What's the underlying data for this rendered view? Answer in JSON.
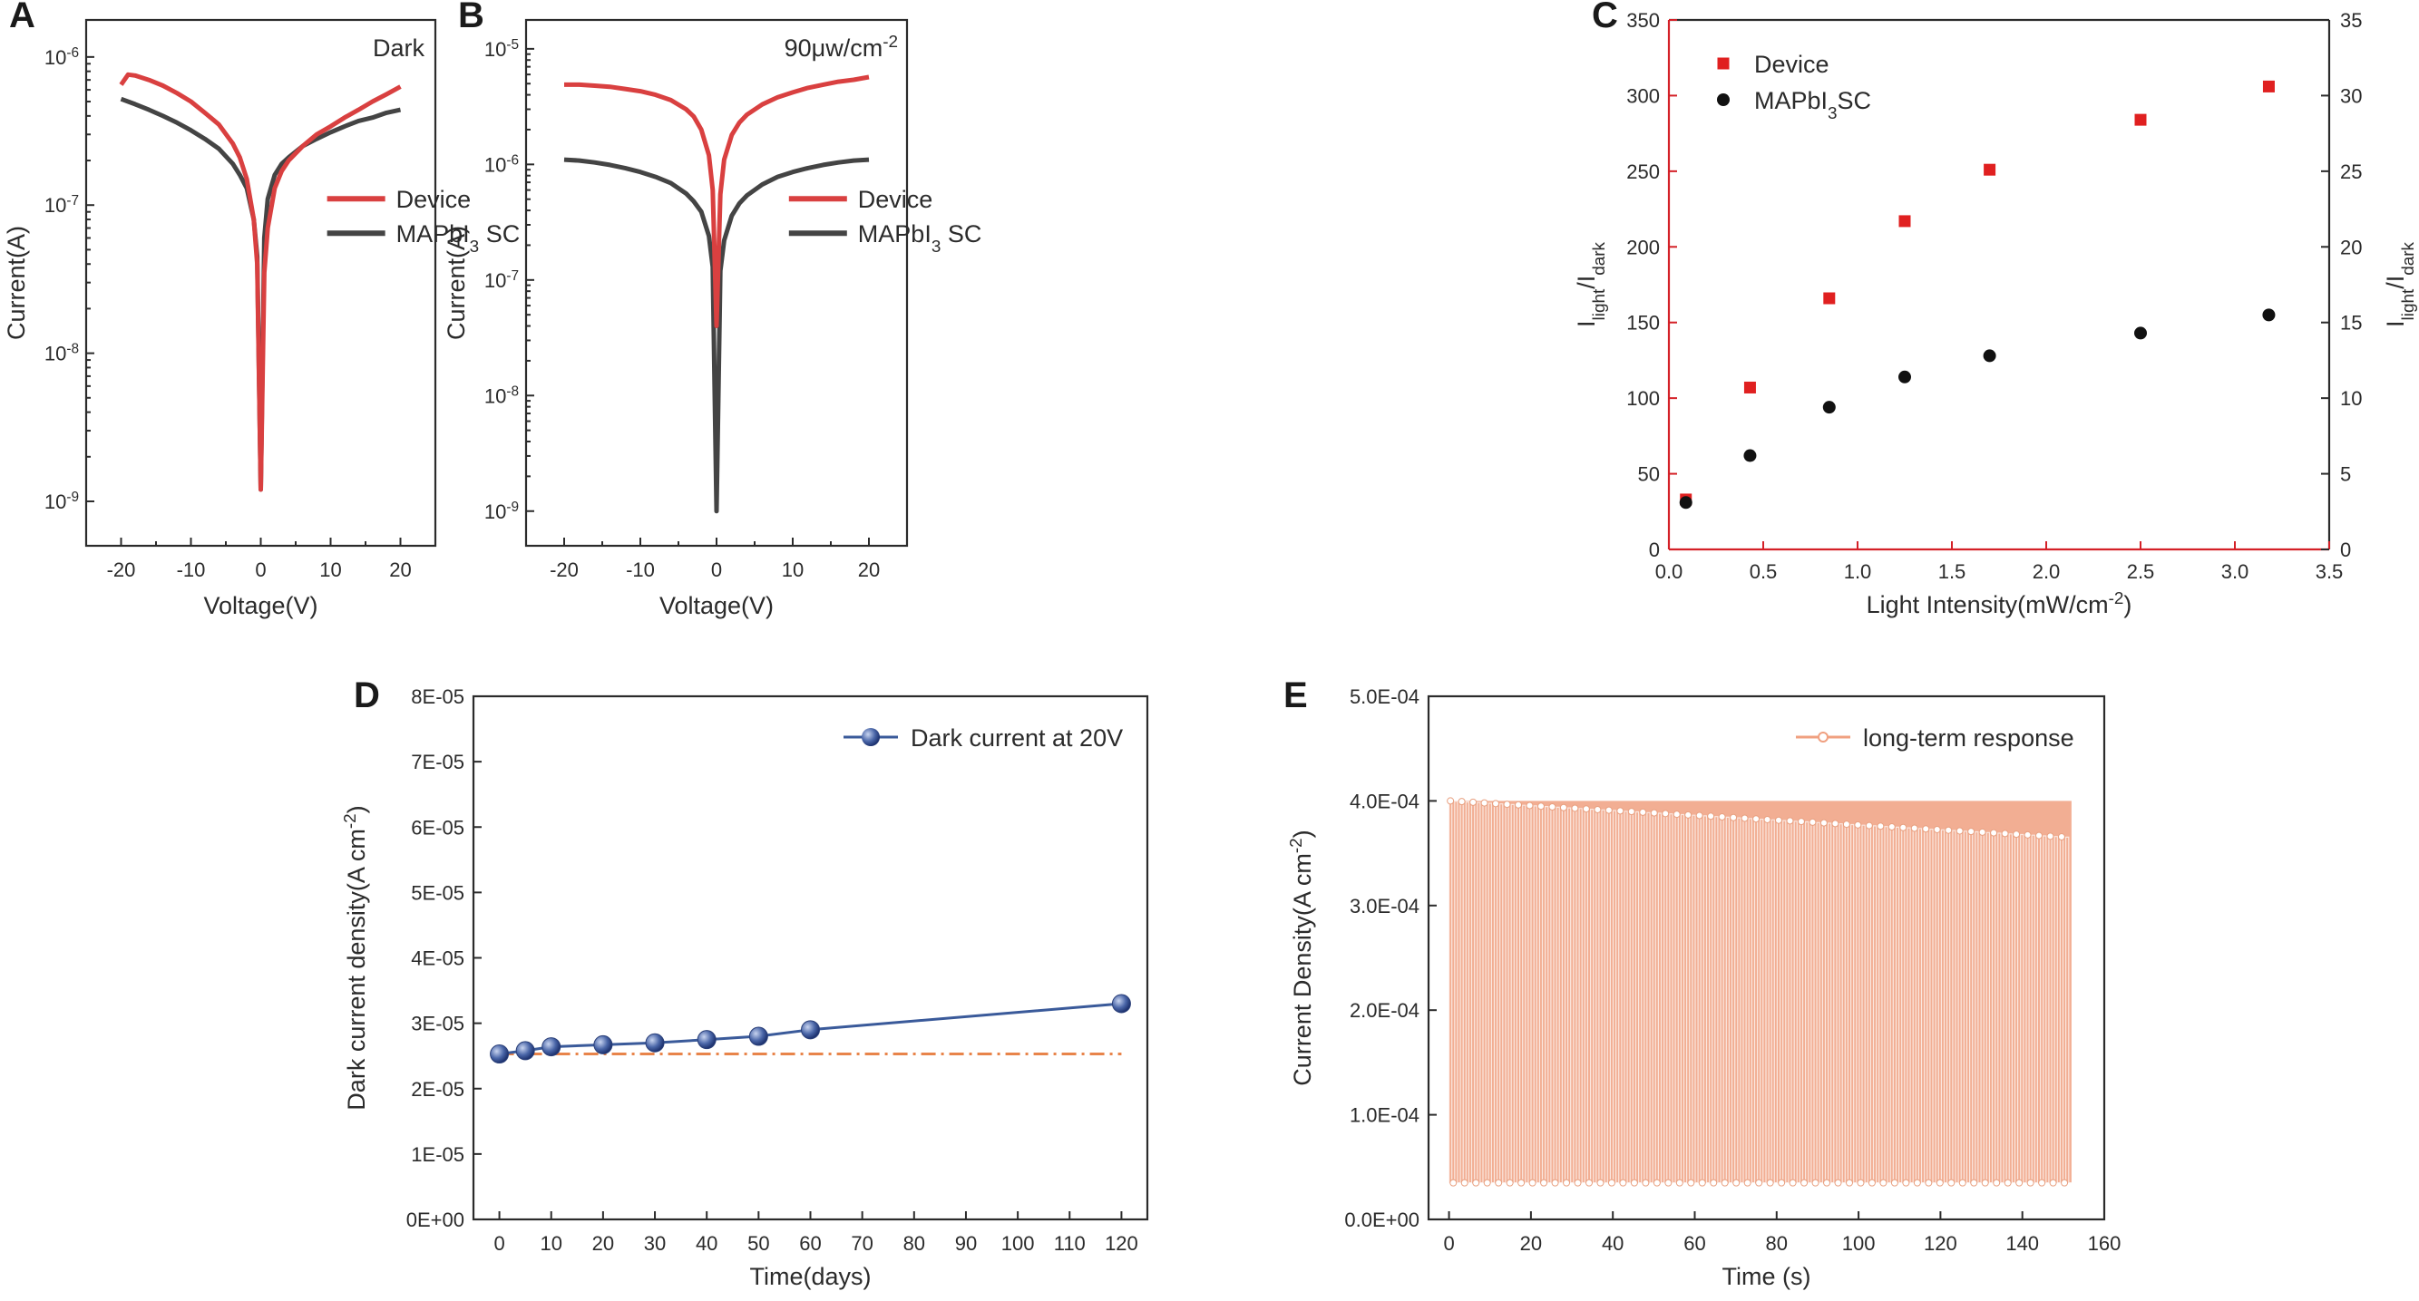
{
  "chart_data": [
    {
      "id": "A",
      "type": "line",
      "panel_label": "A",
      "annotation": "Dark",
      "xlabel": "Voltage(V)",
      "ylabel": "Current(A)",
      "yscale": "log",
      "xlim": [
        -25,
        25
      ],
      "ylim_exp": [
        -9.3,
        -5.75
      ],
      "xticks": [
        -20,
        -10,
        0,
        10,
        20
      ],
      "xtick_labels": [
        "-20",
        "-10",
        "0",
        "10",
        "20"
      ],
      "yticks_exp": [
        -9,
        -8,
        -7,
        -6
      ],
      "ytick_labels": [
        "10",
        "10",
        "10",
        "10"
      ],
      "ytick_sups": [
        "-9",
        "-8",
        "-7",
        "-6"
      ],
      "legend_position": "center-right",
      "series": [
        {
          "name": "Device",
          "legend_main": "Device",
          "legend_sub": "",
          "legend_tail": "",
          "color": "#d94040",
          "x": [
            -20,
            -19,
            -18,
            -16,
            -14,
            -12,
            -10,
            -8,
            -6,
            -4,
            -3,
            -2,
            -1,
            -0.5,
            0,
            0.5,
            1,
            2,
            3,
            4,
            6,
            8,
            10,
            12,
            14,
            16,
            18,
            20
          ],
          "y": [
            6.5e-07,
            7.6e-07,
            7.5e-07,
            7e-07,
            6.4e-07,
            5.7e-07,
            5e-07,
            4.2e-07,
            3.5e-07,
            2.6e-07,
            2.1e-07,
            1.5e-07,
            8e-08,
            4e-08,
            1.2e-09,
            3.5e-08,
            7e-08,
            1.3e-07,
            1.7e-07,
            2e-07,
            2.5e-07,
            3e-07,
            3.4e-07,
            3.9e-07,
            4.4e-07,
            5e-07,
            5.6e-07,
            6.3e-07
          ]
        },
        {
          "name": "MAPbI3 SC",
          "legend_main": "MAPbI",
          "legend_sub": "3",
          "legend_tail": " SC",
          "color": "#444444",
          "x": [
            -20,
            -18,
            -16,
            -14,
            -12,
            -10,
            -8,
            -6,
            -4,
            -3,
            -2,
            -1,
            -0.5,
            0,
            0.5,
            1,
            2,
            3,
            4,
            6,
            8,
            10,
            12,
            14,
            16,
            18,
            20
          ],
          "y": [
            5.2e-07,
            4.8e-07,
            4.4e-07,
            4e-07,
            3.6e-07,
            3.2e-07,
            2.8e-07,
            2.4e-07,
            1.9e-07,
            1.6e-07,
            1.3e-07,
            8e-08,
            4.5e-08,
            1.2e-09,
            6e-08,
            1.1e-07,
            1.6e-07,
            1.9e-07,
            2.1e-07,
            2.5e-07,
            2.8e-07,
            3.1e-07,
            3.4e-07,
            3.7e-07,
            3.9e-07,
            4.2e-07,
            4.4e-07
          ]
        }
      ]
    },
    {
      "id": "B",
      "type": "line",
      "panel_label": "B",
      "annotation": "90μw/cm",
      "annotation_sup": "-2",
      "xlabel": "Voltage(V)",
      "ylabel": "Current(A)",
      "yscale": "log",
      "xlim": [
        -25,
        25
      ],
      "ylim_exp": [
        -9.3,
        -4.75
      ],
      "xticks": [
        -20,
        -10,
        0,
        10,
        20
      ],
      "xtick_labels": [
        "-20",
        "-10",
        "0",
        "10",
        "20"
      ],
      "yticks_exp": [
        -9,
        -8,
        -7,
        -6,
        -5
      ],
      "ytick_labels": [
        "10",
        "10",
        "10",
        "10",
        "10"
      ],
      "ytick_sups": [
        "-9",
        "-8",
        "-7",
        "-6",
        "-5"
      ],
      "legend_position": "center-right",
      "series": [
        {
          "name": "Device",
          "legend_main": "Device",
          "legend_sub": "",
          "legend_tail": "",
          "color": "#d94040",
          "x": [
            -20,
            -18,
            -16,
            -14,
            -12,
            -10,
            -8,
            -6,
            -4,
            -3,
            -2,
            -1,
            -0.5,
            0,
            0.5,
            1,
            2,
            3,
            4,
            6,
            8,
            10,
            12,
            14,
            16,
            18,
            20
          ],
          "y": [
            4.9e-06,
            4.9e-06,
            4.8e-06,
            4.7e-06,
            4.5e-06,
            4.3e-06,
            4e-06,
            3.6e-06,
            3e-06,
            2.6e-06,
            2e-06,
            1.2e-06,
            6e-07,
            4e-08,
            5.5e-07,
            1.1e-06,
            1.8e-06,
            2.3e-06,
            2.7e-06,
            3.3e-06,
            3.8e-06,
            4.2e-06,
            4.6e-06,
            4.9e-06,
            5.2e-06,
            5.4e-06,
            5.7e-06
          ]
        },
        {
          "name": "MAPbI3 SC",
          "legend_main": "MAPbI",
          "legend_sub": "3",
          "legend_tail": " SC",
          "color": "#444444",
          "x": [
            -20,
            -18,
            -16,
            -14,
            -12,
            -10,
            -8,
            -6,
            -4,
            -3,
            -2,
            -1,
            -0.5,
            0,
            0.5,
            1,
            2,
            3,
            4,
            6,
            8,
            10,
            12,
            14,
            16,
            18,
            20
          ],
          "y": [
            1.1e-06,
            1.08e-06,
            1.04e-06,
            9.9e-07,
            9.3e-07,
            8.6e-07,
            7.8e-07,
            6.9e-07,
            5.6e-07,
            4.8e-07,
            3.9e-07,
            2.4e-07,
            1.3e-07,
            1e-09,
            1.2e-07,
            2.2e-07,
            3.6e-07,
            4.6e-07,
            5.4e-07,
            6.7e-07,
            7.8e-07,
            8.6e-07,
            9.3e-07,
            9.9e-07,
            1.04e-06,
            1.08e-06,
            1.1e-06
          ]
        }
      ]
    },
    {
      "id": "C",
      "type": "scatter",
      "panel_label": "C",
      "xlabel": "Light Intensity(mW/cm",
      "xlabel_sup": "-2",
      "xlabel_tail": ")",
      "ylabel_left": {
        "base": "I",
        "sub1": "light",
        "mid": "/I",
        "sub2": "dark"
      },
      "ylabel_right": {
        "base": "I",
        "sub1": "light",
        "mid": "/I",
        "sub2": "dark"
      },
      "xlim": [
        0,
        3.5
      ],
      "ylim_left": [
        0,
        350
      ],
      "ylim_right": [
        0,
        35
      ],
      "xticks": [
        0,
        0.5,
        1.0,
        1.5,
        2.0,
        2.5,
        3.0,
        3.5
      ],
      "xtick_labels": [
        "0.0",
        "0.5",
        "1.0",
        "1.5",
        "2.0",
        "2.5",
        "3.0",
        "3.5"
      ],
      "yticks_left": [
        0,
        50,
        100,
        150,
        200,
        250,
        300,
        350
      ],
      "ytick_labels_left": [
        "0",
        "50",
        "100",
        "150",
        "200",
        "250",
        "300",
        "350"
      ],
      "yticks_right": [
        0,
        5,
        10,
        15,
        20,
        25,
        30,
        35
      ],
      "ytick_labels_right": [
        "0",
        "5",
        "10",
        "15",
        "20",
        "25",
        "30",
        "35"
      ],
      "legend_position": "top-left",
      "series": [
        {
          "name": "Device",
          "legend_main": "Device",
          "legend_sub": "",
          "legend_tail": "",
          "axis": "left",
          "marker": "square",
          "color": "#e02020",
          "x": [
            0.09,
            0.43,
            0.85,
            1.25,
            1.7,
            2.5,
            3.18
          ],
          "y": [
            33,
            107,
            166,
            217,
            251,
            284,
            306
          ]
        },
        {
          "name": "MAPbI3SC",
          "legend_main": "MAPbI",
          "legend_sub": "3",
          "legend_tail": "SC",
          "axis": "right",
          "marker": "circle",
          "color": "#111111",
          "x": [
            0.09,
            0.43,
            0.85,
            1.25,
            1.7,
            2.5,
            3.18
          ],
          "y": [
            3.1,
            6.2,
            9.4,
            11.4,
            12.8,
            14.3,
            15.5
          ]
        }
      ]
    },
    {
      "id": "D",
      "type": "line",
      "panel_label": "D",
      "xlabel": "Time(days)",
      "ylabel": "Dark current density(A cm",
      "ylabel_sup": "-2",
      "ylabel_tail": ")",
      "xlim": [
        -5,
        125
      ],
      "ylim": [
        0,
        8e-05
      ],
      "xticks": [
        0,
        10,
        20,
        30,
        40,
        50,
        60,
        70,
        80,
        90,
        100,
        110,
        120
      ],
      "xtick_labels": [
        "0",
        "10",
        "20",
        "30",
        "40",
        "50",
        "60",
        "70",
        "80",
        "90",
        "100",
        "110",
        "120"
      ],
      "yticks": [
        0,
        1e-05,
        2e-05,
        3e-05,
        4e-05,
        5e-05,
        6e-05,
        7e-05,
        8e-05
      ],
      "ytick_labels": [
        "0E+00",
        "1E-05",
        "2E-05",
        "3E-05",
        "4E-05",
        "5E-05",
        "6E-05",
        "7E-05",
        "8E-05"
      ],
      "legend_position": "top-right",
      "series": [
        {
          "name": "Dark current at 20V",
          "color": "#3a5a9a",
          "x": [
            0,
            5,
            10,
            20,
            30,
            40,
            50,
            60,
            120
          ],
          "y": [
            2.53e-05,
            2.58e-05,
            2.64e-05,
            2.67e-05,
            2.7e-05,
            2.75e-05,
            2.8e-05,
            2.9e-05,
            3.3e-05
          ]
        }
      ],
      "reference_line": {
        "y": 2.53e-05,
        "color": "#e8844a",
        "style": "dash-dot"
      }
    },
    {
      "id": "E",
      "type": "line",
      "panel_label": "E",
      "xlabel": "Time (s)",
      "ylabel": "Current Density(A cm",
      "ylabel_sup": "-2",
      "ylabel_tail": ")",
      "xlim": [
        -5,
        160
      ],
      "ylim": [
        0,
        0.0005
      ],
      "xticks": [
        0,
        20,
        40,
        60,
        80,
        100,
        120,
        140,
        160
      ],
      "xtick_labels": [
        "0",
        "20",
        "40",
        "60",
        "80",
        "100",
        "120",
        "140",
        "160"
      ],
      "yticks": [
        0,
        0.0001,
        0.0002,
        0.0003,
        0.0004,
        0.0005
      ],
      "ytick_labels": [
        "0.0E+00",
        "1.0E-04",
        "2.0E-04",
        "3.0E-04",
        "4.0E-04",
        "5.0E-04"
      ],
      "legend_position": "top-right",
      "series": [
        {
          "name": "long-term response",
          "color": "#f0a080",
          "x_start": 0,
          "x_end": 152,
          "n_cycles": 110,
          "on_start": 0.0004,
          "on_end": 0.000365,
          "off": 3.5e-05
        }
      ]
    }
  ]
}
